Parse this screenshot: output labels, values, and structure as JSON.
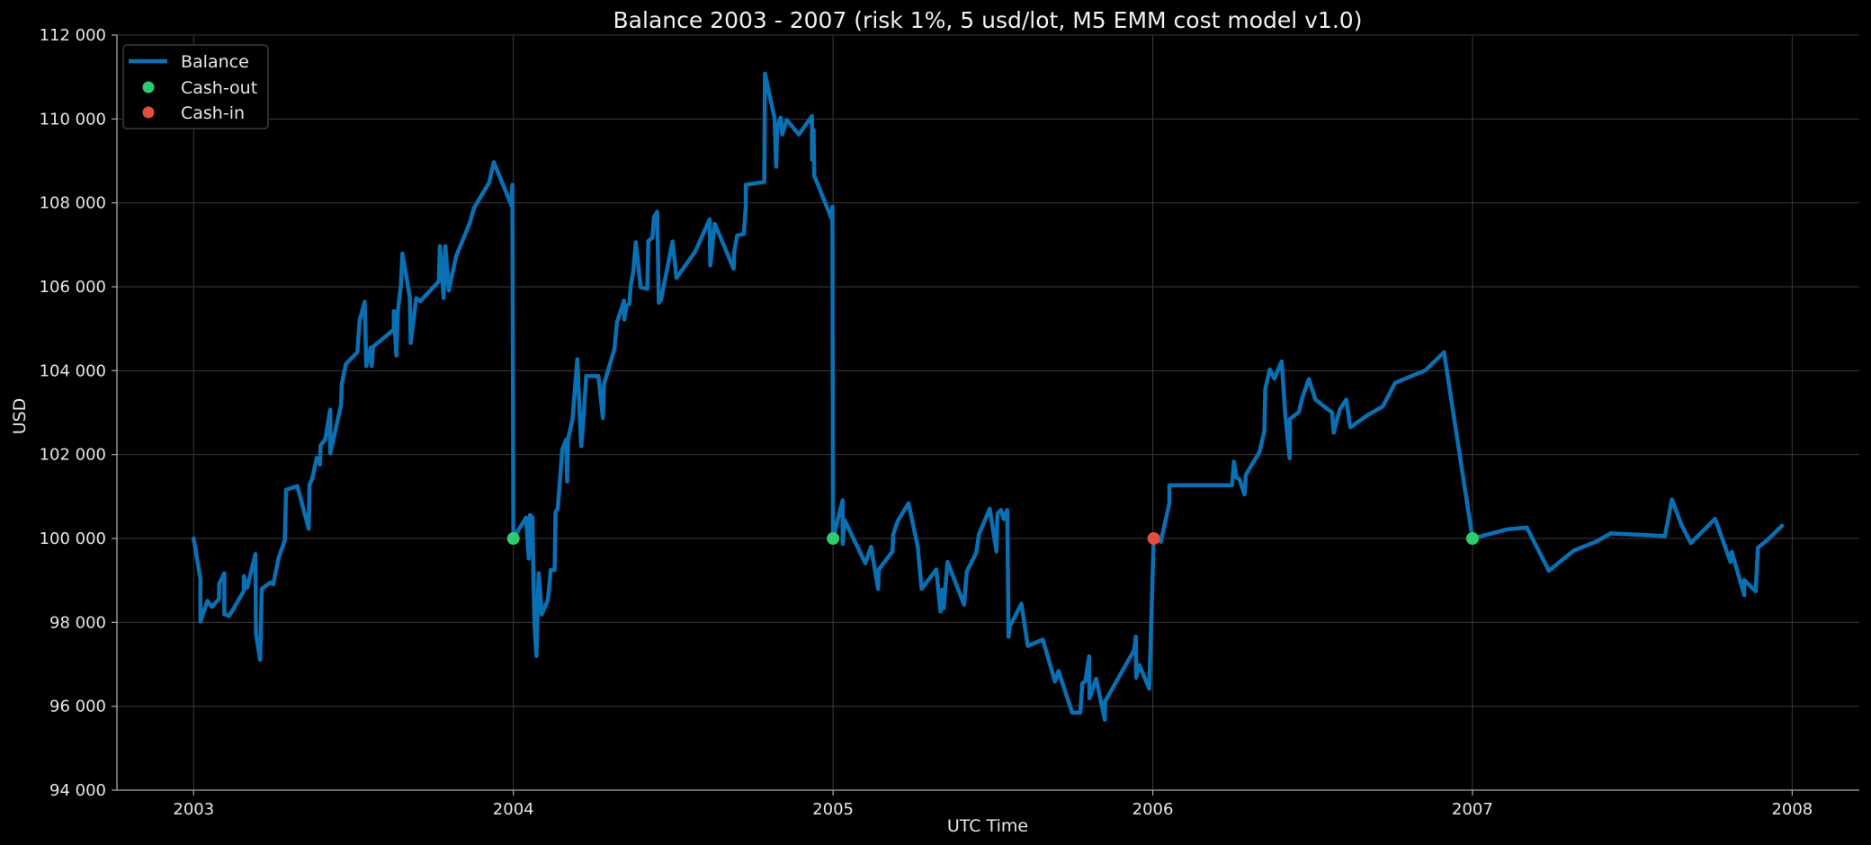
{
  "chart_data": {
    "type": "line",
    "title": "Balance 2003 - 2007 (risk 1%, 5 usd/lot, M5 EMM cost model v1.0)",
    "xlabel": "UTC Time",
    "ylabel": "USD",
    "xlim": [
      2002.76,
      2008.21
    ],
    "ylim": [
      94000,
      112000
    ],
    "x_ticks": [
      2003,
      2004,
      2005,
      2006,
      2007,
      2008
    ],
    "x_tick_labels": [
      "2003",
      "2004",
      "2005",
      "2006",
      "2007",
      "2008"
    ],
    "y_ticks": [
      94000,
      96000,
      98000,
      100000,
      102000,
      104000,
      106000,
      108000,
      110000,
      112000
    ],
    "y_tick_labels": [
      "94 000",
      "96 000",
      "98 000",
      "100 000",
      "102 000",
      "104 000",
      "106 000",
      "108 000",
      "110 000",
      "112 000"
    ],
    "grid": true,
    "legend": {
      "placement": "top-left",
      "entries": [
        "Balance",
        "Cash-out",
        "Cash-in"
      ]
    },
    "colors": {
      "balance": "#0a70b4",
      "cash_out": "#2ecc71",
      "cash_in": "#e74c3c",
      "background": "#000000",
      "grid": "#3a3a3a"
    },
    "series": [
      {
        "name": "Balance",
        "points": [
          [
            2003.0,
            100000
          ],
          [
            2003.021,
            99030
          ],
          [
            2003.021,
            98020
          ],
          [
            2003.043,
            98510
          ],
          [
            2003.057,
            98370
          ],
          [
            2003.079,
            98560
          ],
          [
            2003.08,
            98920
          ],
          [
            2003.096,
            99170
          ],
          [
            2003.096,
            98190
          ],
          [
            2003.112,
            98160
          ],
          [
            2003.157,
            98750
          ],
          [
            2003.157,
            99100
          ],
          [
            2003.167,
            98820
          ],
          [
            2003.193,
            99630
          ],
          [
            2003.195,
            97720
          ],
          [
            2003.208,
            97110
          ],
          [
            2003.213,
            98800
          ],
          [
            2003.24,
            98950
          ],
          [
            2003.249,
            98910
          ],
          [
            2003.266,
            99540
          ],
          [
            2003.285,
            99960
          ],
          [
            2003.289,
            101160
          ],
          [
            2003.324,
            101250
          ],
          [
            2003.36,
            100230
          ],
          [
            2003.362,
            101270
          ],
          [
            2003.371,
            101430
          ],
          [
            2003.385,
            101920
          ],
          [
            2003.395,
            101760
          ],
          [
            2003.397,
            102220
          ],
          [
            2003.412,
            102360
          ],
          [
            2003.427,
            103070
          ],
          [
            2003.427,
            102030
          ],
          [
            2003.437,
            102360
          ],
          [
            2003.461,
            103180
          ],
          [
            2003.463,
            103670
          ],
          [
            2003.476,
            104160
          ],
          [
            2003.512,
            104440
          ],
          [
            2003.519,
            105200
          ],
          [
            2003.535,
            105640
          ],
          [
            2003.54,
            104110
          ],
          [
            2003.554,
            104550
          ],
          [
            2003.557,
            104110
          ],
          [
            2003.561,
            104570
          ],
          [
            2003.626,
            104980
          ],
          [
            2003.626,
            105420
          ],
          [
            2003.634,
            104360
          ],
          [
            2003.639,
            105440
          ],
          [
            2003.648,
            106020
          ],
          [
            2003.653,
            106790
          ],
          [
            2003.676,
            105750
          ],
          [
            2003.679,
            104660
          ],
          [
            2003.696,
            105730
          ],
          [
            2003.709,
            105660
          ],
          [
            2003.767,
            106130
          ],
          [
            2003.77,
            106970
          ],
          [
            2003.782,
            105730
          ],
          [
            2003.787,
            106970
          ],
          [
            2003.798,
            105910
          ],
          [
            2003.821,
            106730
          ],
          [
            2003.863,
            107500
          ],
          [
            2003.877,
            107880
          ],
          [
            2003.924,
            108480
          ],
          [
            2003.939,
            108970
          ],
          [
            2003.994,
            107940
          ],
          [
            2003.997,
            108430
          ],
          [
            2004.0,
            100000
          ],
          [
            2004.04,
            100500
          ],
          [
            2004.048,
            99520
          ],
          [
            2004.052,
            100560
          ],
          [
            2004.06,
            100500
          ],
          [
            2004.062,
            99410
          ],
          [
            2004.066,
            97990
          ],
          [
            2004.072,
            97200
          ],
          [
            2004.079,
            99170
          ],
          [
            2004.089,
            98190
          ],
          [
            2004.108,
            98540
          ],
          [
            2004.117,
            99250
          ],
          [
            2004.129,
            99250
          ],
          [
            2004.132,
            100630
          ],
          [
            2004.139,
            100720
          ],
          [
            2004.153,
            102120
          ],
          [
            2004.165,
            102360
          ],
          [
            2004.168,
            101360
          ],
          [
            2004.171,
            102360
          ],
          [
            2004.185,
            102850
          ],
          [
            2004.2,
            104270
          ],
          [
            2004.212,
            102200
          ],
          [
            2004.217,
            102600
          ],
          [
            2004.228,
            103870
          ],
          [
            2004.266,
            103870
          ],
          [
            2004.28,
            102870
          ],
          [
            2004.284,
            103690
          ],
          [
            2004.316,
            104510
          ],
          [
            2004.324,
            105150
          ],
          [
            2004.346,
            105670
          ],
          [
            2004.347,
            105220
          ],
          [
            2004.354,
            105550
          ],
          [
            2004.363,
            105590
          ],
          [
            2004.367,
            106020
          ],
          [
            2004.375,
            106350
          ],
          [
            2004.383,
            107060
          ],
          [
            2004.398,
            105990
          ],
          [
            2004.419,
            105950
          ],
          [
            2004.422,
            107090
          ],
          [
            2004.435,
            107170
          ],
          [
            2004.44,
            107660
          ],
          [
            2004.45,
            107790
          ],
          [
            2004.455,
            105620
          ],
          [
            2004.462,
            105690
          ],
          [
            2004.498,
            107080
          ],
          [
            2004.51,
            106210
          ],
          [
            2004.569,
            106840
          ],
          [
            2004.614,
            107610
          ],
          [
            2004.616,
            106510
          ],
          [
            2004.63,
            107500
          ],
          [
            2004.689,
            106430
          ],
          [
            2004.691,
            106840
          ],
          [
            2004.7,
            107220
          ],
          [
            2004.721,
            107260
          ],
          [
            2004.727,
            107940
          ],
          [
            2004.727,
            108430
          ],
          [
            2004.785,
            108500
          ],
          [
            2004.787,
            111080
          ],
          [
            2004.817,
            110010
          ],
          [
            2004.822,
            108860
          ],
          [
            2004.825,
            109790
          ],
          [
            2004.836,
            110030
          ],
          [
            2004.841,
            109630
          ],
          [
            2004.855,
            109980
          ],
          [
            2004.893,
            109630
          ],
          [
            2004.934,
            110070
          ],
          [
            2004.934,
            109030
          ],
          [
            2004.939,
            109740
          ],
          [
            2004.941,
            108650
          ],
          [
            2004.996,
            107610
          ],
          [
            2004.998,
            107910
          ],
          [
            2005.0,
            100000
          ],
          [
            2005.03,
            100910
          ],
          [
            2005.03,
            99870
          ],
          [
            2005.036,
            100440
          ],
          [
            2005.101,
            99410
          ],
          [
            2005.119,
            99800
          ],
          [
            2005.141,
            98800
          ],
          [
            2005.143,
            99260
          ],
          [
            2005.186,
            99690
          ],
          [
            2005.188,
            100090
          ],
          [
            2005.202,
            100410
          ],
          [
            2005.236,
            100840
          ],
          [
            2005.265,
            99800
          ],
          [
            2005.277,
            98800
          ],
          [
            2005.323,
            99260
          ],
          [
            2005.336,
            98260
          ],
          [
            2005.342,
            98780
          ],
          [
            2005.346,
            98340
          ],
          [
            2005.358,
            99440
          ],
          [
            2005.41,
            98420
          ],
          [
            2005.418,
            99210
          ],
          [
            2005.448,
            99660
          ],
          [
            2005.456,
            100090
          ],
          [
            2005.49,
            100710
          ],
          [
            2005.511,
            99690
          ],
          [
            2005.514,
            100590
          ],
          [
            2005.525,
            100680
          ],
          [
            2005.534,
            100460
          ],
          [
            2005.545,
            100680
          ],
          [
            2005.549,
            97660
          ],
          [
            2005.553,
            97910
          ],
          [
            2005.589,
            98440
          ],
          [
            2005.609,
            97440
          ],
          [
            2005.656,
            97590
          ],
          [
            2005.694,
            96590
          ],
          [
            2005.705,
            96840
          ],
          [
            2005.748,
            95850
          ],
          [
            2005.773,
            95850
          ],
          [
            2005.78,
            96550
          ],
          [
            2005.789,
            96590
          ],
          [
            2005.801,
            97190
          ],
          [
            2005.802,
            96190
          ],
          [
            2005.823,
            96660
          ],
          [
            2005.85,
            95680
          ],
          [
            2005.851,
            96120
          ],
          [
            2005.942,
            97340
          ],
          [
            2005.947,
            97660
          ],
          [
            2005.948,
            96680
          ],
          [
            2005.958,
            96980
          ],
          [
            2005.989,
            96420
          ],
          [
            2006.003,
            100000
          ],
          [
            2006.025,
            99920
          ],
          [
            2006.052,
            100840
          ],
          [
            2006.052,
            101270
          ],
          [
            2006.248,
            101270
          ],
          [
            2006.254,
            101830
          ],
          [
            2006.262,
            101450
          ],
          [
            2006.271,
            101410
          ],
          [
            2006.287,
            101050
          ],
          [
            2006.291,
            101520
          ],
          [
            2006.334,
            102060
          ],
          [
            2006.349,
            102560
          ],
          [
            2006.352,
            103560
          ],
          [
            2006.366,
            104030
          ],
          [
            2006.38,
            103810
          ],
          [
            2006.403,
            104220
          ],
          [
            2006.415,
            102920
          ],
          [
            2006.428,
            101910
          ],
          [
            2006.429,
            102850
          ],
          [
            2006.457,
            103010
          ],
          [
            2006.468,
            103360
          ],
          [
            2006.488,
            103800
          ],
          [
            2006.509,
            103310
          ],
          [
            2006.561,
            103000
          ],
          [
            2006.566,
            102520
          ],
          [
            2006.585,
            103080
          ],
          [
            2006.605,
            103310
          ],
          [
            2006.618,
            102650
          ],
          [
            2006.67,
            102930
          ],
          [
            2006.72,
            103150
          ],
          [
            2006.758,
            103710
          ],
          [
            2006.853,
            104010
          ],
          [
            2006.911,
            104440
          ],
          [
            2007.0,
            100000
          ],
          [
            2007.111,
            100220
          ],
          [
            2007.17,
            100260
          ],
          [
            2007.239,
            99230
          ],
          [
            2007.317,
            99710
          ],
          [
            2007.386,
            99920
          ],
          [
            2007.432,
            100120
          ],
          [
            2007.602,
            100060
          ],
          [
            2007.624,
            100930
          ],
          [
            2007.653,
            100340
          ],
          [
            2007.683,
            99890
          ],
          [
            2007.759,
            100470
          ],
          [
            2007.797,
            99660
          ],
          [
            2007.807,
            99440
          ],
          [
            2007.811,
            99680
          ],
          [
            2007.85,
            98650
          ],
          [
            2007.85,
            99010
          ],
          [
            2007.886,
            98740
          ],
          [
            2007.893,
            99780
          ],
          [
            2007.922,
            99960
          ],
          [
            2007.968,
            100300
          ]
        ]
      },
      {
        "name": "Cash-out",
        "points": [
          [
            2004.0,
            100000
          ],
          [
            2005.0,
            100000
          ],
          [
            2007.0,
            100000
          ]
        ]
      },
      {
        "name": "Cash-in",
        "points": [
          [
            2006.003,
            100000
          ]
        ]
      }
    ]
  }
}
